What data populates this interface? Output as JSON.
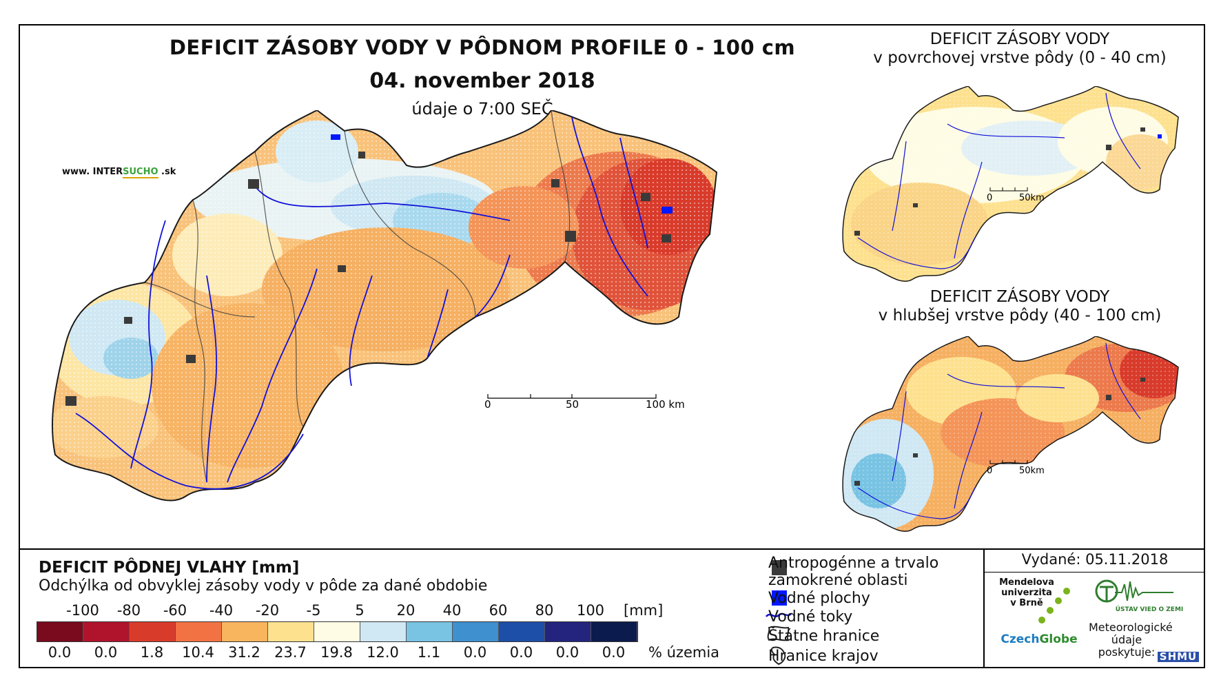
{
  "title": "DEFICIT ZÁSOBY VODY V PÔDNOM PROFILE 0 - 100 cm",
  "date": "04. november 2018",
  "time_note": "údaje o 7:00 SEČ",
  "website": {
    "prefix": "www. INTER",
    "highlight": "SUCHO",
    "suffix": " .sk"
  },
  "inset_top": {
    "line1": "DEFICIT ZÁSOBY VODY",
    "line2": "v povrchovej vrstve pôdy (0 - 40 cm)"
  },
  "inset_bottom": {
    "line1": "DEFICIT ZÁSOBY VODY",
    "line2": "v hlubšej vrstve pôdy (40 - 100 cm)"
  },
  "main_scale": {
    "labels": [
      "0",
      "50",
      "100 km"
    ]
  },
  "inset_scale": {
    "labels": [
      "0",
      "50km"
    ]
  },
  "legend": {
    "title": "DEFICIT PÔDNEJ VLAHY [mm]",
    "subtitle": "Odchýlka od obvyklej zásoby vody v pôde za dané obdobie",
    "ticks": [
      "-100",
      "-80",
      "-60",
      "-40",
      "-20",
      "-5",
      "5",
      "20",
      "40",
      "60",
      "80",
      "100"
    ],
    "unit": "[mm]",
    "colors": [
      "#7a0a1e",
      "#b0142c",
      "#d93b2b",
      "#f27244",
      "#f9b45e",
      "#fde18f",
      "#fefce4",
      "#cfe8f3",
      "#79c3e3",
      "#3f90cf",
      "#1d4fa8",
      "#24247e",
      "#0c1b4d"
    ],
    "percentages": [
      "0.0",
      "0.0",
      "1.8",
      "10.4",
      "31.2",
      "23.7",
      "19.8",
      "12.0",
      "1.1",
      "0.0",
      "0.0",
      "0.0",
      "0.0"
    ],
    "percent_label": "% územia"
  },
  "symbols": {
    "anthropogenic": "Antropogénne a trvalo zamokrené oblasti",
    "water_bodies": "Vodné plochy",
    "rivers": "Vodné toky",
    "state_border": "Štátne hranice",
    "region_border": "Hranice krajov"
  },
  "issued": "Vydané: 05.11.2018",
  "logos": {
    "mendel": "Mendelova univerzita v Brně",
    "czechglobe_a": "Czech",
    "czechglobe_b": "Globe",
    "uvz": "ÚSTAV VIED O ZEMI",
    "meteo": "Meteorologické údaje poskytuje:",
    "shmu": "SHMÚ"
  },
  "map_colors": {
    "main_palette": [
      "#f9b45e",
      "#fde18f",
      "#fefce4",
      "#cfe8f3",
      "#79c3e3",
      "#f27244",
      "#d93b2b"
    ],
    "river": "#1010d8",
    "water": "#0018ff",
    "urban": "#3a3a3a"
  }
}
